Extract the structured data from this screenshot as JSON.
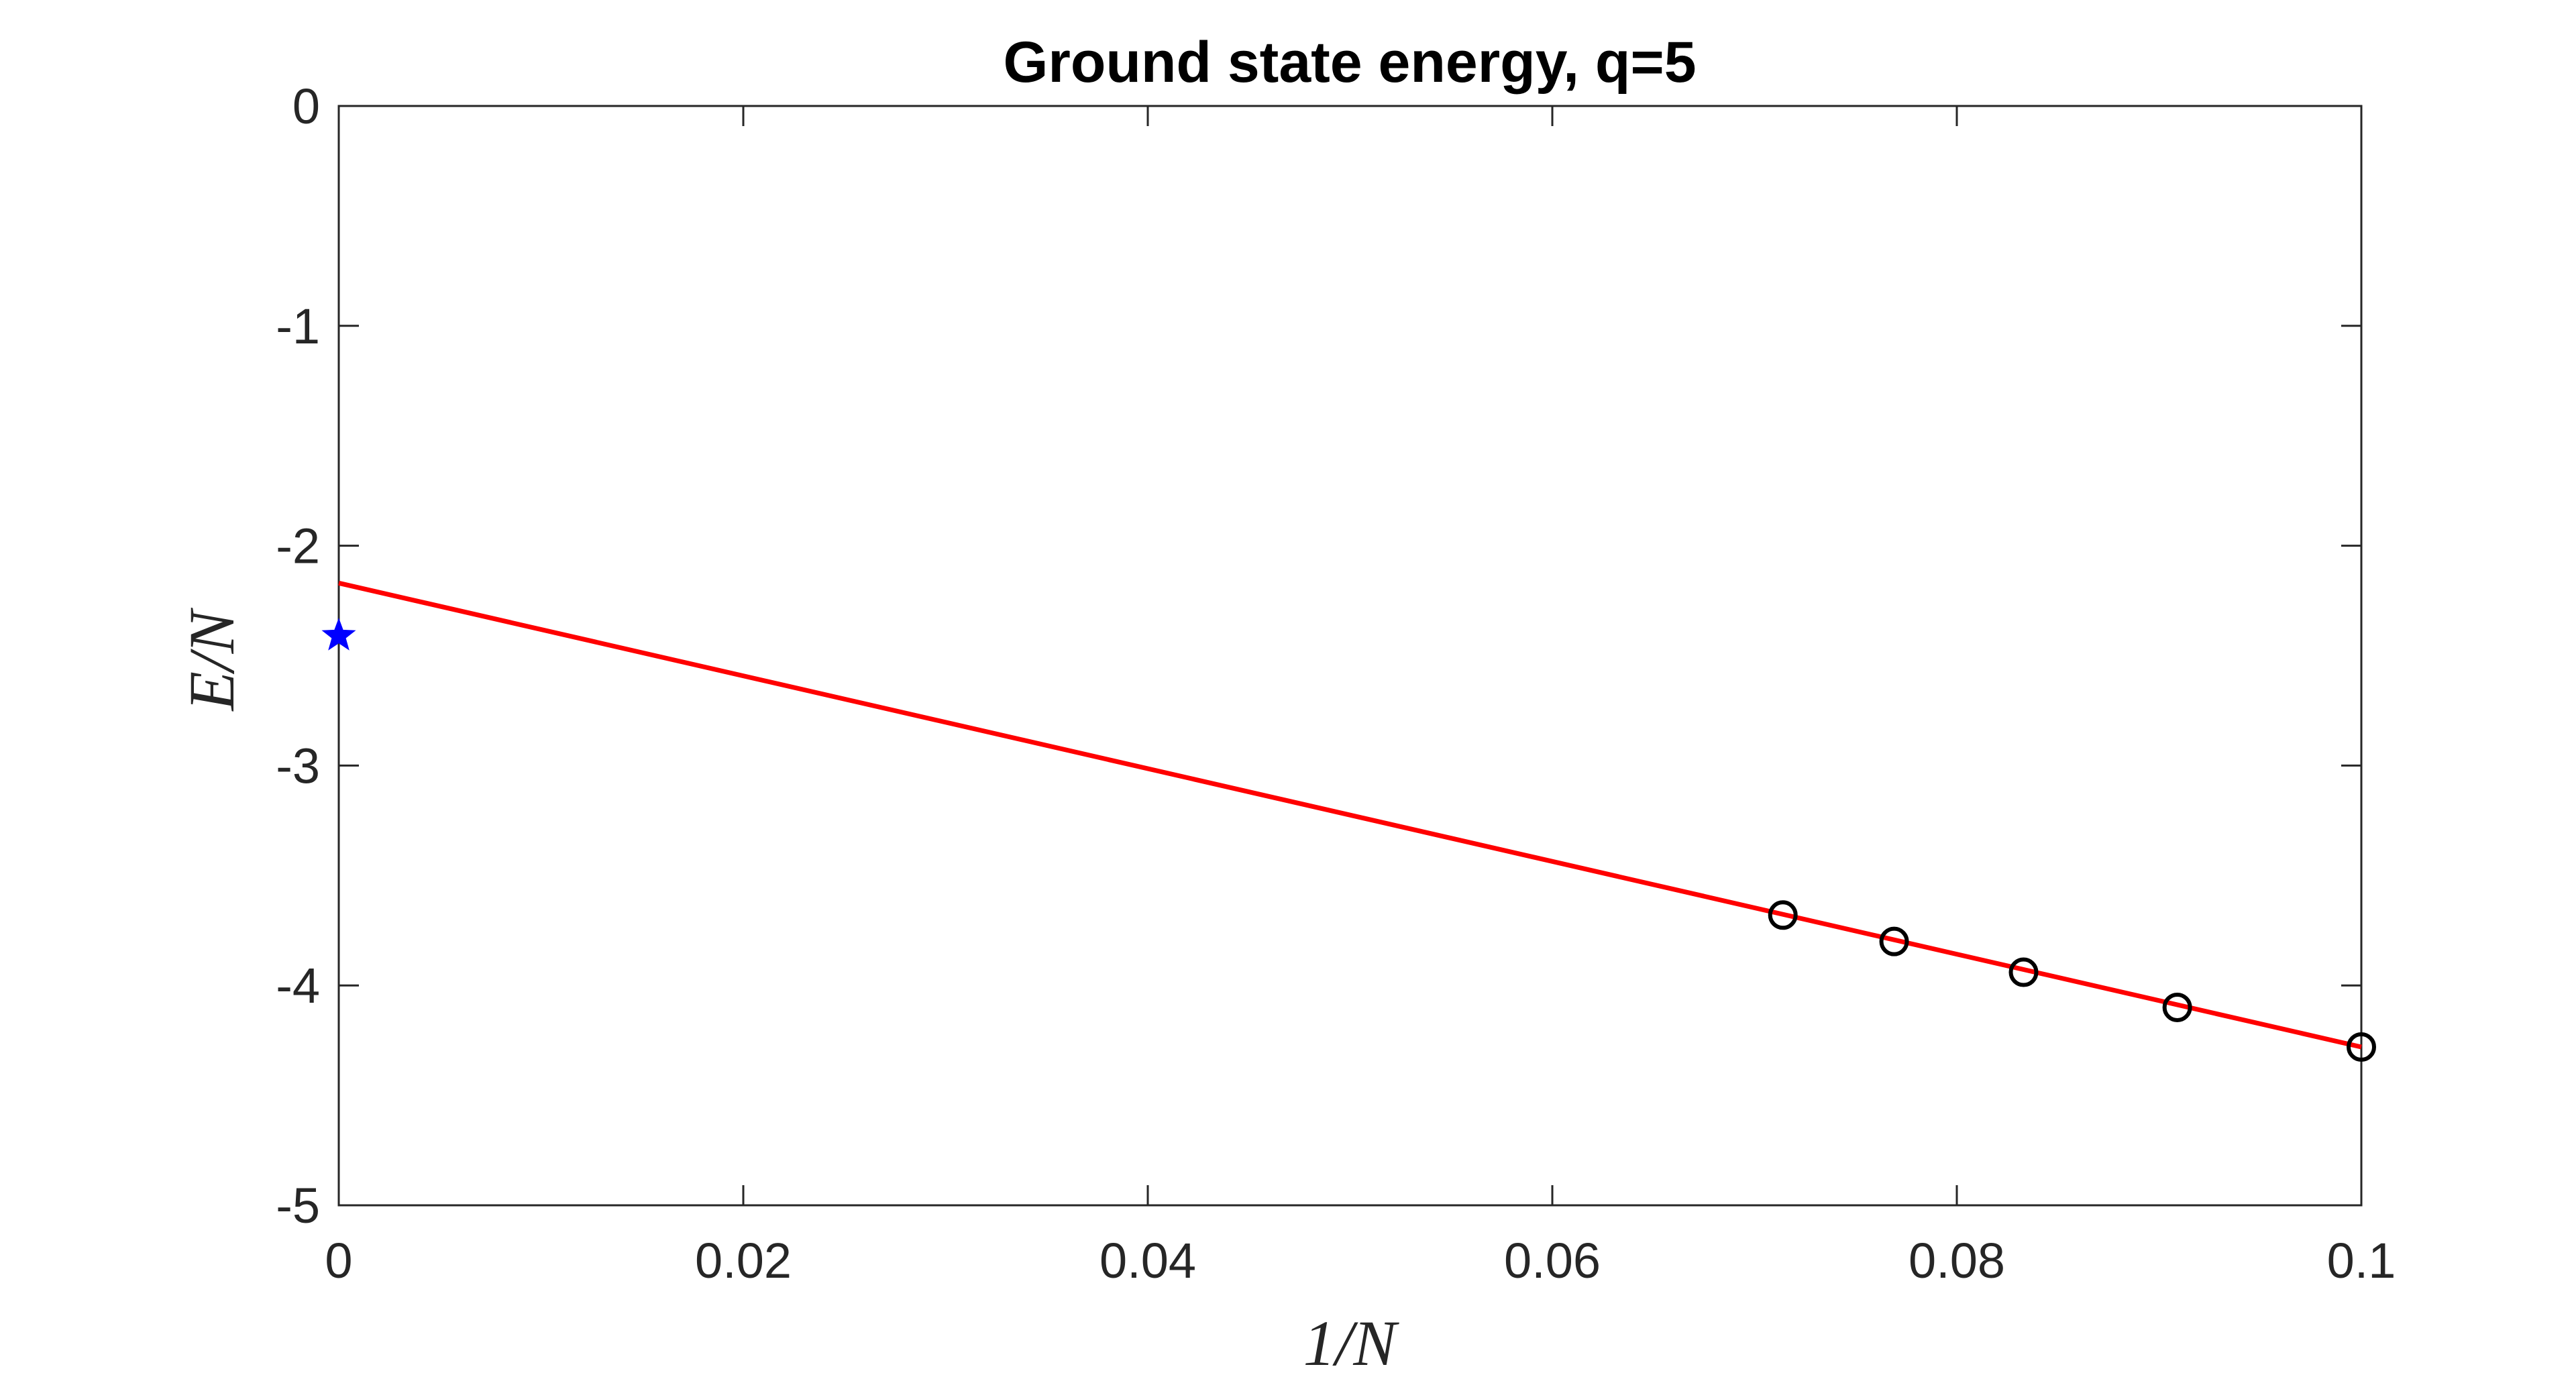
{
  "chart_data": {
    "type": "scatter",
    "title": "Ground state energy, q=5",
    "xlabel": "1/N",
    "ylabel": "E/N",
    "xlim": [
      0,
      0.1
    ],
    "ylim": [
      -5,
      0
    ],
    "xticks": [
      0,
      0.02,
      0.04,
      0.06,
      0.08,
      0.1
    ],
    "yticks": [
      0,
      -1,
      -2,
      -3,
      -4,
      -5
    ],
    "xtick_labels": [
      "0",
      "0.02",
      "0.04",
      "0.06",
      "0.08",
      "0.1"
    ],
    "ytick_labels": [
      "0",
      "-1",
      "-2",
      "-3",
      "-4",
      "-5"
    ],
    "grid": false,
    "box": true,
    "series": [
      {
        "kind": "markers",
        "marker": "circle",
        "color": "#000000",
        "x": [
          0.0714,
          0.0769,
          0.0833,
          0.0909,
          0.1
        ],
        "y": [
          -3.68,
          -3.8,
          -3.94,
          -4.1,
          -4.28
        ]
      },
      {
        "kind": "line",
        "color": "#ff0000",
        "x": [
          0,
          0.1
        ],
        "y": [
          -2.17,
          -4.28
        ]
      },
      {
        "kind": "markers",
        "marker": "star",
        "color": "#0000ff",
        "x": [
          0
        ],
        "y": [
          -2.41
        ]
      }
    ]
  }
}
